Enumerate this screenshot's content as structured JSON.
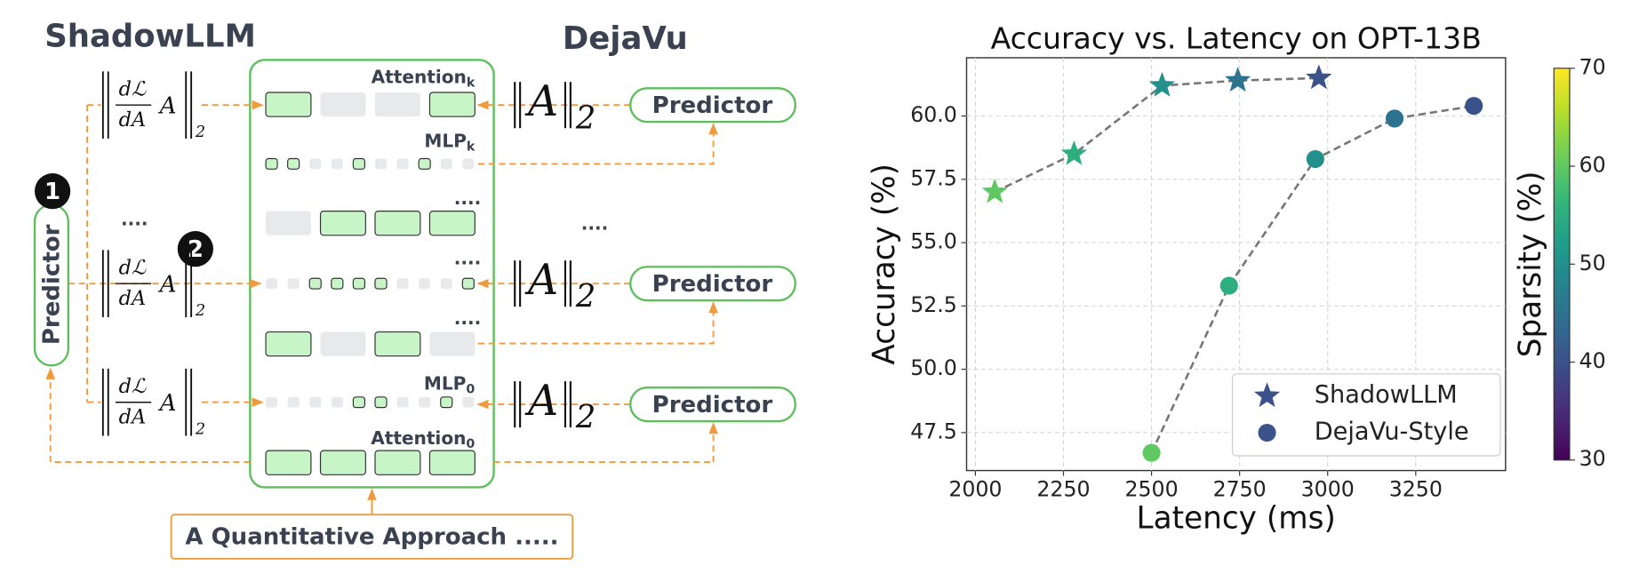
{
  "diagram": {
    "left_title": "ShadowLLM",
    "right_title": "DejaVu",
    "left_predictor": "Predictor",
    "steps": [
      "1",
      "2"
    ],
    "ellipses": [
      "....",
      "....",
      "....",
      "....",
      "...."
    ],
    "gradient_norms": [
      {
        "numerator": "dℒ",
        "denominator": "dA",
        "operand": "A",
        "subscript": "2"
      },
      {
        "numerator": "dℒ",
        "denominator": "dA",
        "operand": "A",
        "subscript": "2"
      },
      {
        "numerator": "dℒ",
        "denominator": "dA",
        "operand": "A",
        "subscript": "2"
      }
    ],
    "activation_norms": [
      {
        "operand": "A",
        "subscript": "2"
      },
      {
        "operand": "A",
        "subscript": "2"
      },
      {
        "operand": "A",
        "subscript": "2"
      }
    ],
    "predictors": [
      "Predictor",
      "Predictor",
      "Predictor"
    ],
    "layers": [
      {
        "text": "Attention",
        "subscript": "k"
      },
      {
        "text": "MLP",
        "subscript": "k"
      },
      {
        "text": "MLP",
        "subscript": "0"
      },
      {
        "text": "Attention",
        "subscript": "0"
      }
    ],
    "footer": "A Quantitative Approach ....."
  },
  "chart_data": {
    "type": "scatter",
    "title": "Accuracy vs. Latency on OPT-13B",
    "x_label": "Latency (ms)",
    "y_label": "Accuracy (%)",
    "series": [
      {
        "name": "ShadowLLM",
        "marker": "star",
        "color": "#3b528b",
        "x": [
          2055,
          2280,
          2530,
          2745,
          2975
        ],
        "values": [
          57.0,
          58.5,
          61.2,
          61.4,
          61.5
        ],
        "sparsity": [
          60,
          55,
          50,
          45,
          40
        ]
      },
      {
        "name": "DejaVu-Style",
        "marker": "circle",
        "color": "#3b528b",
        "x": [
          2500,
          2720,
          2965,
          3190,
          3415
        ],
        "values": [
          46.7,
          53.3,
          58.3,
          59.9,
          60.4
        ],
        "sparsity": [
          60,
          55,
          50,
          45,
          40
        ]
      }
    ],
    "colormap": "viridis",
    "colorbar_label": "Sparsity (%)",
    "clim": [
      30,
      70
    ],
    "cticks": [
      30,
      40,
      50,
      60,
      70
    ],
    "xlim": [
      1975,
      3505
    ],
    "xticks": [
      2000,
      2250,
      2500,
      2750,
      3000,
      3250
    ],
    "ylim": [
      46.0,
      62.3
    ],
    "yticks": [
      47.5,
      {
        "value": 50,
        "label": "50.0"
      },
      52.5,
      {
        "value": 55,
        "label": "55.0"
      },
      57.5,
      {
        "value": 60,
        "label": "60.0"
      }
    ],
    "grid": true,
    "legend": "lower right",
    "line_style": "dashed"
  }
}
